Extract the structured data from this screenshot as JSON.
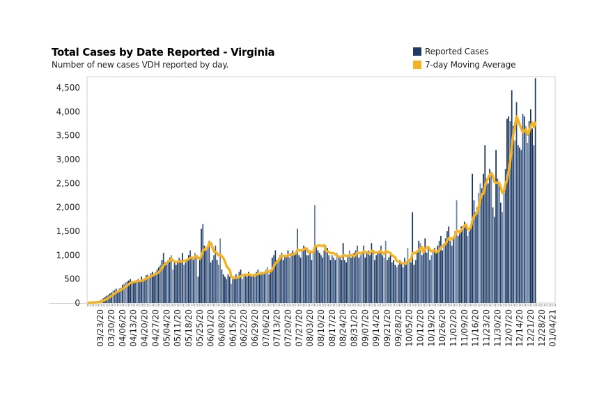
{
  "chart_data": {
    "type": "bar",
    "title": "Total Cases by Date Reported - Virginia",
    "subtitle": "Number of new cases VDH reported by day.",
    "xlabel": "",
    "ylabel": "",
    "ylim": [
      0,
      4500
    ],
    "yticks": [
      0,
      500,
      1000,
      1500,
      2000,
      2500,
      3000,
      3500,
      4000,
      4500
    ],
    "ytick_labels": [
      "0",
      "500",
      "1,000",
      "1,500",
      "2,000",
      "2,500",
      "3,000",
      "3,500",
      "4,000",
      "4,500"
    ],
    "x_start_date": "2020-03-15",
    "x_range_days": 297,
    "xtick_labels": [
      "03/23/20",
      "03/30/20",
      "04/06/20",
      "04/13/20",
      "04/20/20",
      "04/27/20",
      "05/04/20",
      "05/11/20",
      "05/18/20",
      "05/25/20",
      "06/01/20",
      "06/08/20",
      "06/15/20",
      "06/22/20",
      "06/29/20",
      "07/06/20",
      "07/13/20",
      "07/20/20",
      "07/27/20",
      "08/03/20",
      "08/10/20",
      "08/17/20",
      "08/24/20",
      "08/31/20",
      "09/07/20",
      "09/14/20",
      "09/21/20",
      "09/28/20",
      "10/05/20",
      "10/12/20",
      "10/19/20",
      "10/26/20",
      "11/02/20",
      "11/09/20",
      "11/16/20",
      "11/23/20",
      "11/30/20",
      "12/07/20",
      "12/14/20",
      "12/21/20",
      "12/28/20",
      "01/04/21"
    ],
    "legend": {
      "placement": "top-right",
      "entries": [
        {
          "name": "Reported Cases",
          "color": "#1f3b63"
        },
        {
          "name": "7-day Moving Average",
          "color": "#f5b324"
        }
      ]
    },
    "series": [
      {
        "name": "Reported Cases",
        "type": "bar",
        "values": [
          5,
          8,
          12,
          15,
          20,
          25,
          30,
          40,
          60,
          80,
          100,
          130,
          150,
          170,
          200,
          220,
          250,
          270,
          300,
          260,
          300,
          320,
          380,
          400,
          430,
          450,
          470,
          500,
          400,
          420,
          450,
          480,
          500,
          450,
          550,
          500,
          520,
          580,
          600,
          550,
          620,
          650,
          600,
          650,
          700,
          750,
          800,
          900,
          1050,
          850,
          800,
          900,
          950,
          1000,
          700,
          850,
          800,
          850,
          950,
          900,
          1050,
          800,
          850,
          900,
          1000,
          1100,
          950,
          900,
          1050,
          1000,
          550,
          900,
          1550,
          1650,
          1200,
          1100,
          1150,
          1300,
          850,
          900,
          1000,
          1200,
          900,
          800,
          1350,
          700,
          600,
          550,
          500,
          600,
          550,
          400,
          500,
          550,
          600,
          550,
          650,
          700,
          500,
          550,
          600,
          550,
          650,
          600,
          550,
          600,
          550,
          650,
          700,
          600,
          650,
          600,
          650,
          700,
          750,
          600,
          700,
          950,
          1000,
          1100,
          900,
          950,
          1000,
          1050,
          900,
          1000,
          1000,
          1100,
          950,
          1050,
          1100,
          1000,
          1050,
          1550,
          1000,
          950,
          1100,
          1200,
          1150,
          1000,
          1000,
          1100,
          900,
          1050,
          2050,
          1200,
          1100,
          1050,
          1000,
          950,
          1100,
          1200,
          1150,
          1000,
          900,
          1000,
          950,
          900,
          1050,
          1000,
          950,
          900,
          1250,
          900,
          850,
          1000,
          1100,
          950,
          1000,
          1050,
          1100,
          1200,
          950,
          1000,
          1050,
          1200,
          950,
          1050,
          1100,
          1000,
          1250,
          1100,
          900,
          1000,
          1050,
          1100,
          1200,
          1000,
          950,
          1300,
          900,
          950,
          1000,
          850,
          900,
          800,
          750,
          800,
          900,
          850,
          750,
          950,
          800,
          1150,
          900,
          850,
          1900,
          800,
          900,
          1050,
          1300,
          1250,
          1000,
          1100,
          1350,
          1050,
          1150,
          900,
          1000,
          1100,
          1150,
          1050,
          1200,
          1300,
          1400,
          1100,
          1250,
          1350,
          1500,
          1600,
          1300,
          1200,
          1350,
          1500,
          2150,
          1400,
          1450,
          1600,
          1550,
          1700,
          1650,
          1400,
          1500,
          1600,
          2700,
          2150,
          1900,
          2000,
          2300,
          2500,
          2400,
          2700,
          3300,
          2600,
          2500,
          2800,
          2700,
          2000,
          1800,
          3200,
          2600,
          2500,
          2100,
          1900,
          2300,
          2800,
          3850,
          3900,
          3800,
          4450,
          3700,
          3400,
          4200,
          3300,
          3250,
          3200,
          3950,
          3900,
          3700,
          3350,
          3800,
          4050,
          3650,
          3300,
          4700
        ]
      },
      {
        "name": "7-day Moving Average",
        "type": "line",
        "derived_from": "Reported Cases",
        "window_days": 7
      }
    ]
  }
}
